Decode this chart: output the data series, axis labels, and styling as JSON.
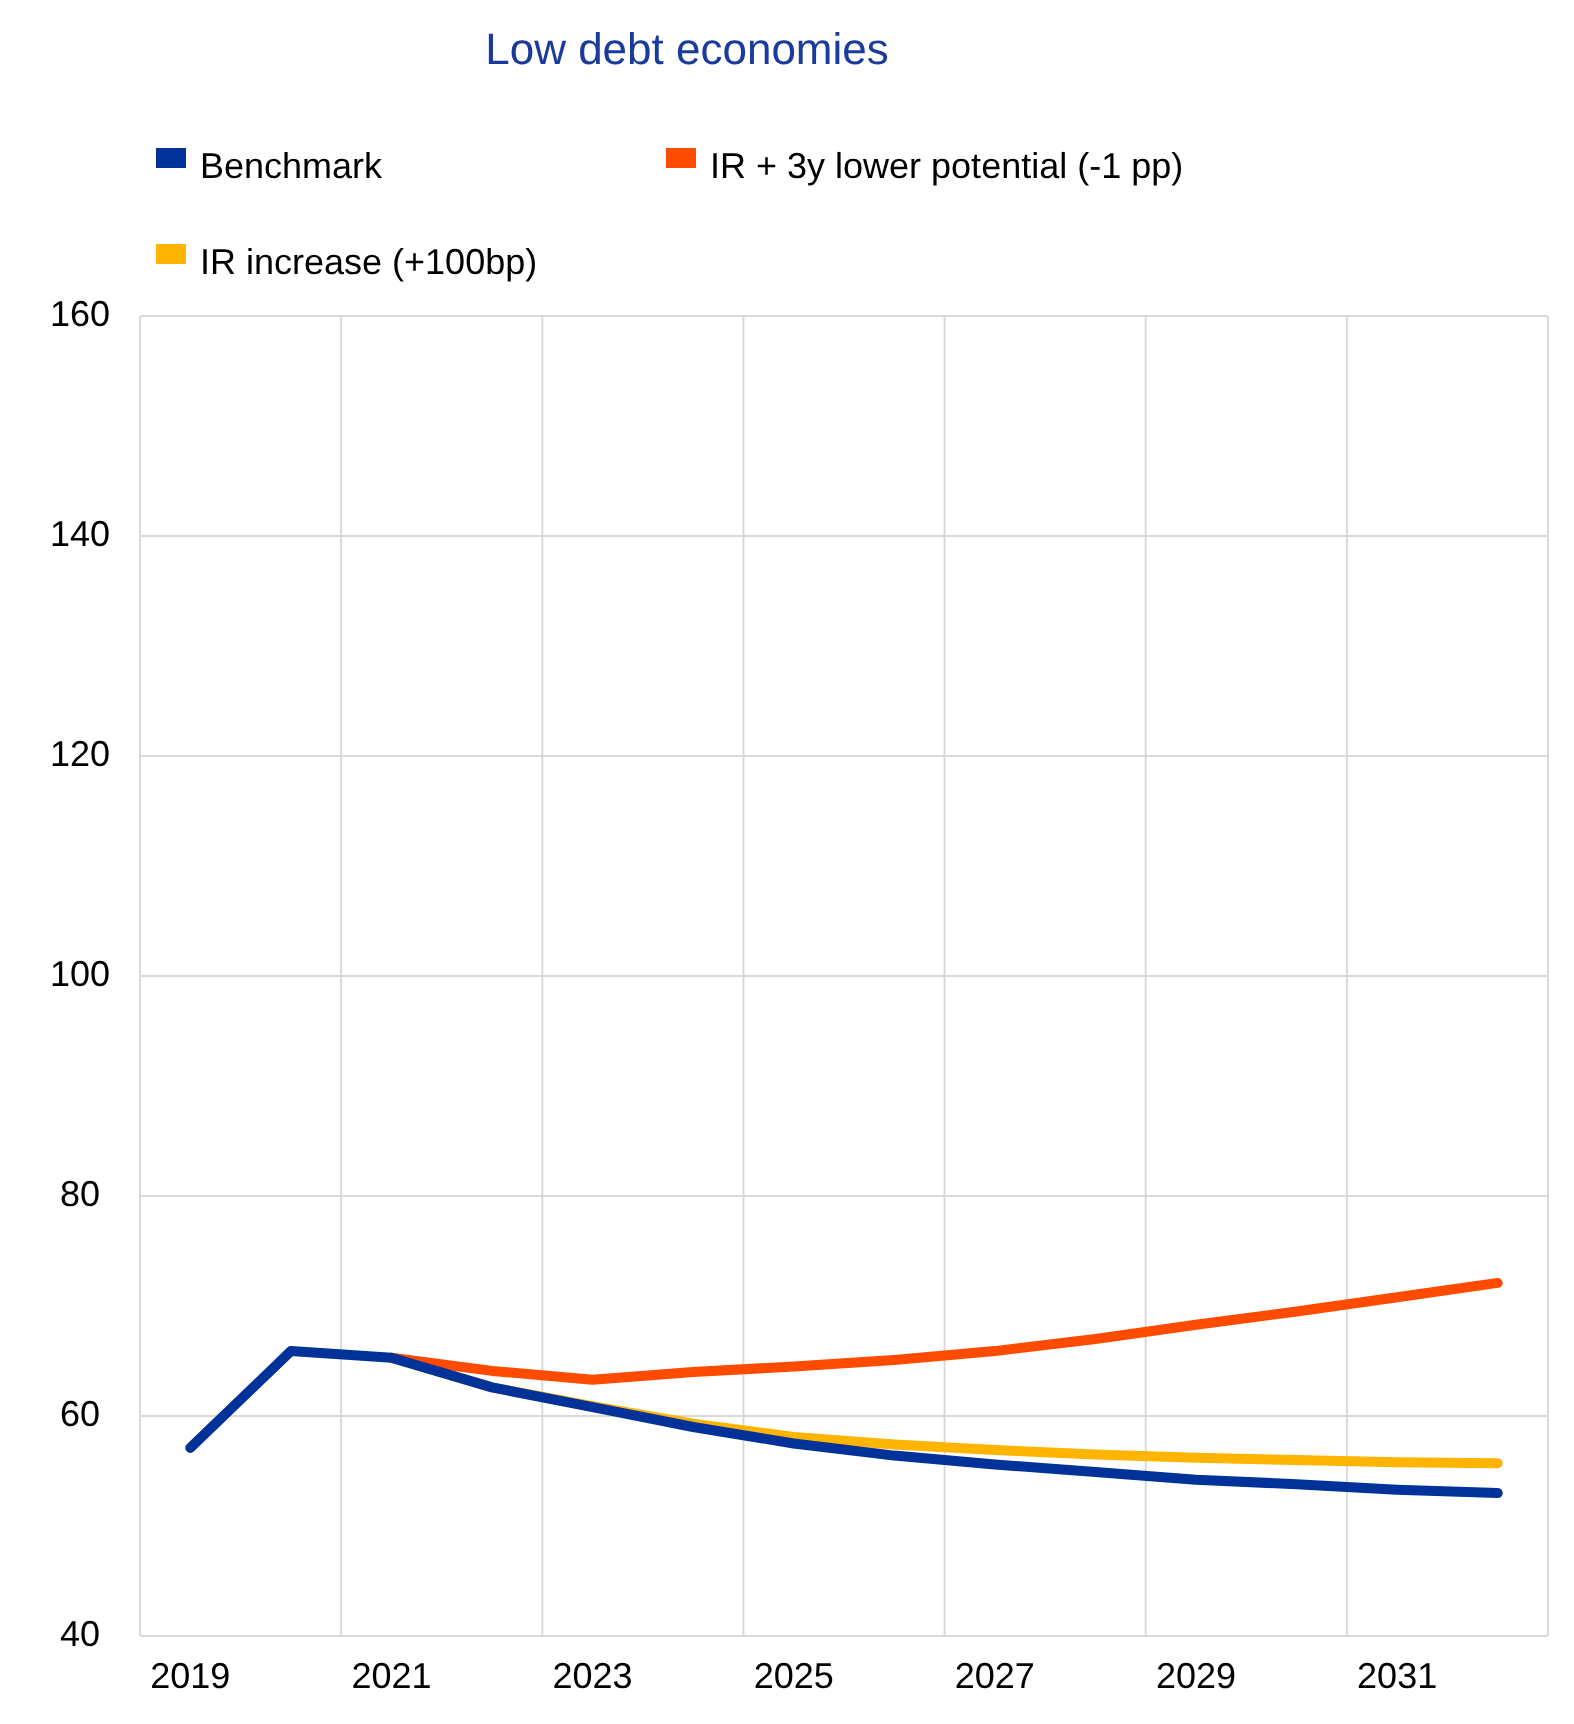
{
  "chart_data": {
    "type": "line",
    "title": "Low debt economies",
    "categories": [
      "2019",
      null,
      "2021",
      null,
      "2023",
      null,
      "2025",
      null,
      "2027",
      null,
      "2029",
      null,
      "2031",
      null
    ],
    "series": [
      {
        "name": "Benchmark",
        "color": "#003299",
        "values": [
          57.1,
          65.9,
          65.3,
          62.6,
          60.8,
          59.0,
          57.5,
          56.4,
          55.6,
          54.9,
          54.2,
          53.8,
          53.3,
          53.0
        ]
      },
      {
        "name": "IR + 3y lower potential (-1 pp)",
        "color": "#ff4b00",
        "values": [
          null,
          null,
          65.3,
          64.1,
          63.3,
          64.0,
          64.5,
          65.1,
          65.9,
          67.0,
          68.3,
          69.5,
          70.8,
          72.1
        ]
      },
      {
        "name": "IR increase (+100bp)",
        "color": "#ffb400",
        "values": [
          null,
          null,
          65.3,
          62.6,
          60.9,
          59.3,
          58.1,
          57.4,
          56.9,
          56.5,
          56.2,
          56.0,
          55.8,
          55.7
        ]
      }
    ],
    "ylim": [
      40,
      160
    ],
    "yticks": [
      40,
      60,
      80,
      100,
      120,
      140,
      160
    ],
    "grid": true,
    "legend": "top",
    "marker": "none",
    "line_style": "solid"
  }
}
